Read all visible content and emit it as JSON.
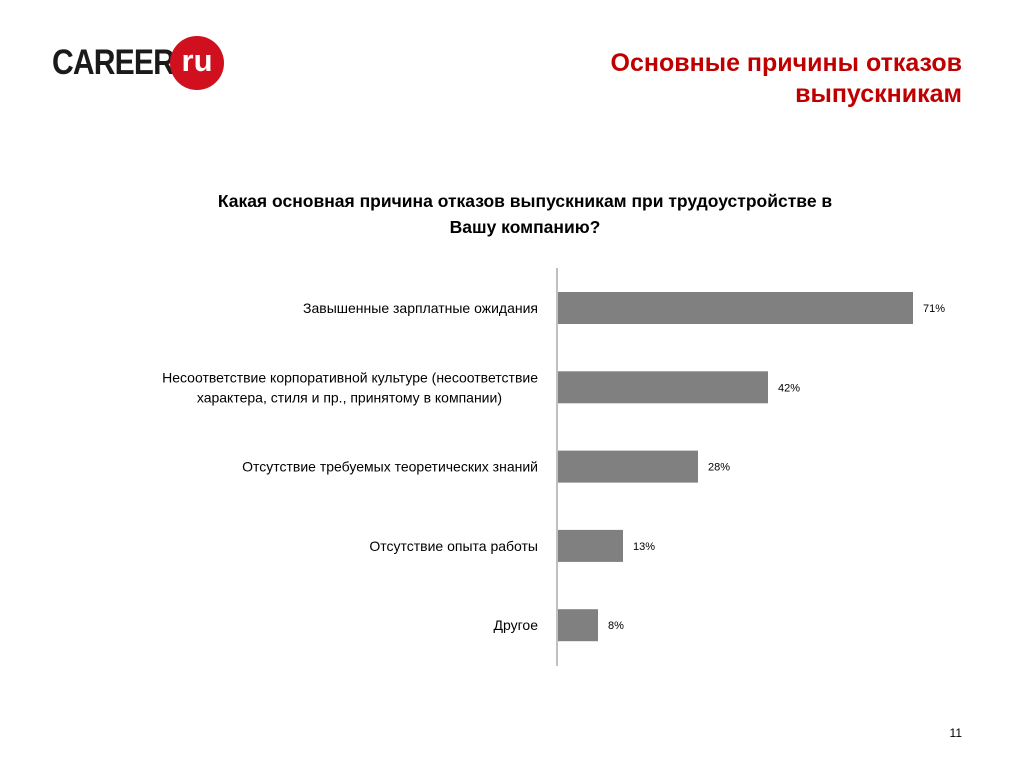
{
  "logo": {
    "word": "CAREER",
    "badge": "ru"
  },
  "slide_title_lines": [
    "Основные причины отказов",
    "выпускникам"
  ],
  "page_number": "11",
  "chart_data": {
    "type": "bar",
    "orientation": "horizontal",
    "title_lines": [
      "Какая основная причина отказов выпускникам при трудоустройстве в",
      "Вашу компанию?"
    ],
    "categories": [
      [
        "Завышенные зарплатные ожидания"
      ],
      [
        "Несоответствие корпоративной культуре (несоответствие",
        "характера, стиля и пр., принятому в компании)"
      ],
      [
        "Отсутствие требуемых теоретических знаний"
      ],
      [
        "Отсутствие опыта работы"
      ],
      [
        "Другое"
      ]
    ],
    "values": [
      71,
      42,
      28,
      13,
      8
    ],
    "data_labels": [
      "71%",
      "42%",
      "28%",
      "13%",
      "8%"
    ],
    "unit": "%",
    "bar_color": "#808080",
    "axis_color": "#808080",
    "grid": false
  }
}
